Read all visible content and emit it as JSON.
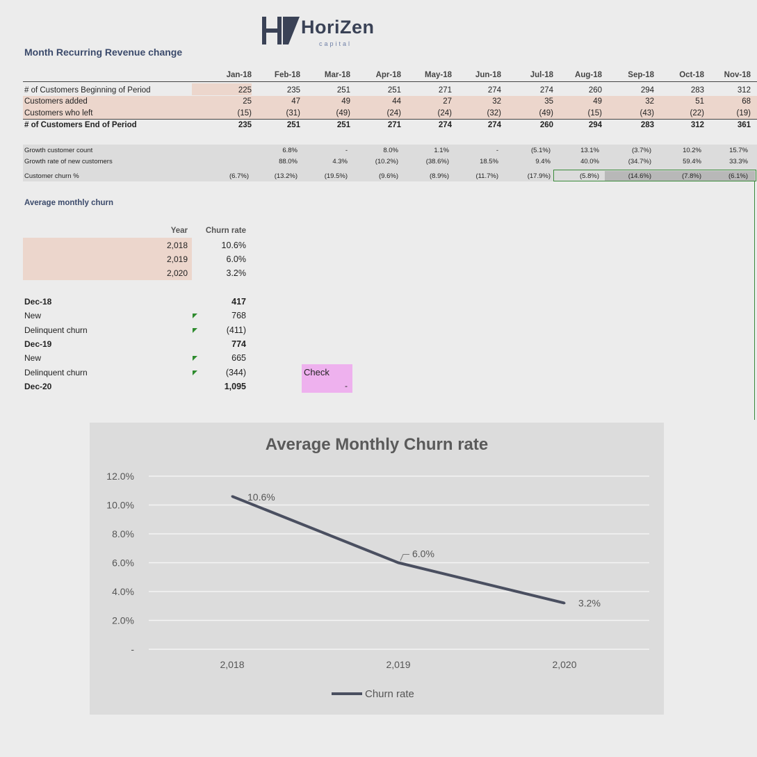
{
  "logo": {
    "name": "HoriZen",
    "sub": "capital"
  },
  "sheet_title": "Month Recurring Revenue change",
  "months": [
    "Jan-18",
    "Feb-18",
    "Mar-18",
    "Apr-18",
    "May-18",
    "Jun-18",
    "Jul-18",
    "Aug-18",
    "Sep-18",
    "Oct-18",
    "Nov-18"
  ],
  "rows": [
    {
      "label": "# of Customers Beginning of Period",
      "values": [
        "225",
        "235",
        "251",
        "251",
        "271",
        "274",
        "274",
        "260",
        "294",
        "283",
        "312"
      ]
    },
    {
      "label": "Customers added",
      "values": [
        "25",
        "47",
        "49",
        "44",
        "27",
        "32",
        "35",
        "49",
        "32",
        "51",
        "68"
      ]
    },
    {
      "label": "Customers who left",
      "values": [
        "(15)",
        "(31)",
        "(49)",
        "(24)",
        "(24)",
        "(32)",
        "(49)",
        "(15)",
        "(43)",
        "(22)",
        "(19)"
      ]
    },
    {
      "label": "# of Customers End of Period",
      "values": [
        "235",
        "251",
        "251",
        "271",
        "274",
        "274",
        "260",
        "294",
        "283",
        "312",
        "361"
      ]
    }
  ],
  "growth_rows": [
    {
      "label": "Growth customer count",
      "values": [
        "",
        "6.8%",
        "-",
        "8.0%",
        "1.1%",
        "-",
        "(5.1%)",
        "13.1%",
        "(3.7%)",
        "10.2%",
        "15.7%"
      ]
    },
    {
      "label": "Growth rate of new customers",
      "values": [
        "",
        "88.0%",
        "4.3%",
        "(10.2%)",
        "(38.6%)",
        "18.5%",
        "9.4%",
        "40.0%",
        "(34.7%)",
        "59.4%",
        "33.3%"
      ]
    },
    {
      "label": "Customer churn %",
      "values": [
        "(6.7%)",
        "(13.2%)",
        "(19.5%)",
        "(9.6%)",
        "(8.9%)",
        "(11.7%)",
        "(17.9%)",
        "(5.8%)",
        "(14.6%)",
        "(7.8%)",
        "(6.1%)"
      ]
    }
  ],
  "avg_title": "Average monthly churn",
  "avg_table": {
    "year_header": "Year",
    "rate_header": "Churn rate",
    "rows": [
      {
        "year": "2,018",
        "rate": "10.6%"
      },
      {
        "year": "2,019",
        "rate": "6.0%"
      },
      {
        "year": "2,020",
        "rate": "3.2%"
      }
    ]
  },
  "rollforward": [
    {
      "label": "Dec-18",
      "value": "417",
      "bold": true
    },
    {
      "label": "New",
      "value": "768",
      "bold": false
    },
    {
      "label": "Delinquent churn",
      "value": "(411)",
      "bold": false
    },
    {
      "label": "Dec-19",
      "value": "774",
      "bold": true
    },
    {
      "label": "New",
      "value": "665",
      "bold": false
    },
    {
      "label": "Delinquent churn",
      "value": "(344)",
      "bold": false
    },
    {
      "label": "Dec-20",
      "value": "1,095",
      "bold": true
    }
  ],
  "check": {
    "label": "Check",
    "value": "-"
  },
  "colors": {
    "pink": "#ecd6cc",
    "check": "#eeb1ee",
    "line": "#4a4f60",
    "header": "#3b4a6b"
  },
  "chart_data": {
    "type": "line",
    "title": "Average Monthly Churn rate",
    "categories": [
      "2,018",
      "2,019",
      "2,020"
    ],
    "series": [
      {
        "name": "Churn rate",
        "values": [
          10.6,
          6.0,
          3.2
        ]
      }
    ],
    "data_labels": [
      "10.6%",
      "6.0%",
      "3.2%"
    ],
    "yticks": [
      "-",
      "2.0%",
      "4.0%",
      "6.0%",
      "8.0%",
      "10.0%",
      "12.0%"
    ],
    "ylim": [
      0,
      12
    ],
    "grid": true,
    "legend": "bottom"
  }
}
